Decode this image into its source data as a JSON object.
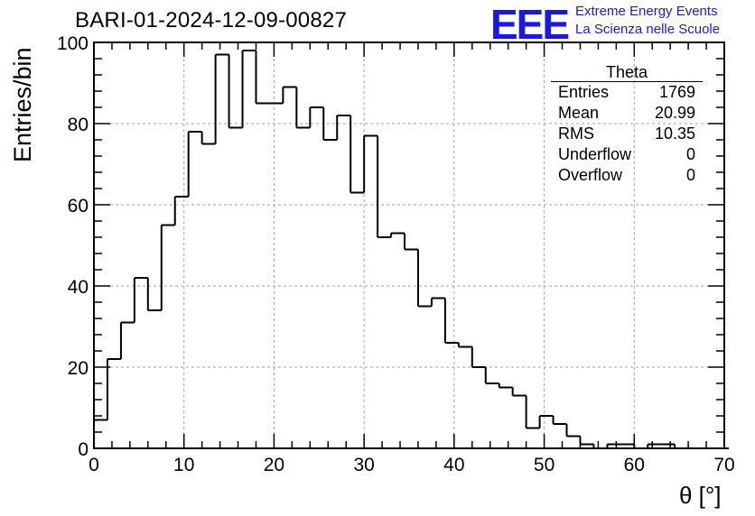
{
  "header": {
    "run_title": "BARI-01-2024-12-09-00827",
    "logo_text": "EEE",
    "logo_line1": "Extreme Energy Events",
    "logo_line2": "La Scienza nelle Scuole",
    "logo_color": "#1a1adf"
  },
  "stats_box": {
    "title": "Theta",
    "rows": [
      {
        "label": "Entries",
        "value": "1769"
      },
      {
        "label": "Mean",
        "value": "20.99"
      },
      {
        "label": "RMS",
        "value": "10.35"
      },
      {
        "label": "Underflow",
        "value": "0"
      },
      {
        "label": "Overflow",
        "value": "0"
      }
    ]
  },
  "chart_data": {
    "type": "bar",
    "histogram": true,
    "title": "",
    "xlabel": "θ [°]",
    "ylabel": "Entries/bin",
    "xlim": [
      0,
      70
    ],
    "ylim": [
      0,
      100
    ],
    "bin_width": 1.5,
    "x_ticks": [
      "0",
      "10",
      "20",
      "30",
      "40",
      "50",
      "60",
      "70"
    ],
    "y_ticks": [
      "0",
      "20",
      "40",
      "60",
      "80",
      "100"
    ],
    "grid": true,
    "legend": "none",
    "bin_edges_start": 0,
    "values": [
      7,
      22,
      31,
      42,
      34,
      55,
      62,
      78,
      75,
      97,
      79,
      98,
      85,
      85,
      89,
      79,
      84,
      76,
      82,
      63,
      77,
      52,
      53,
      49,
      35,
      37,
      26,
      25,
      20,
      16,
      15,
      13,
      5,
      8,
      6,
      3,
      1,
      0,
      1,
      1,
      0,
      1,
      1,
      0,
      0,
      0,
      0
    ]
  }
}
